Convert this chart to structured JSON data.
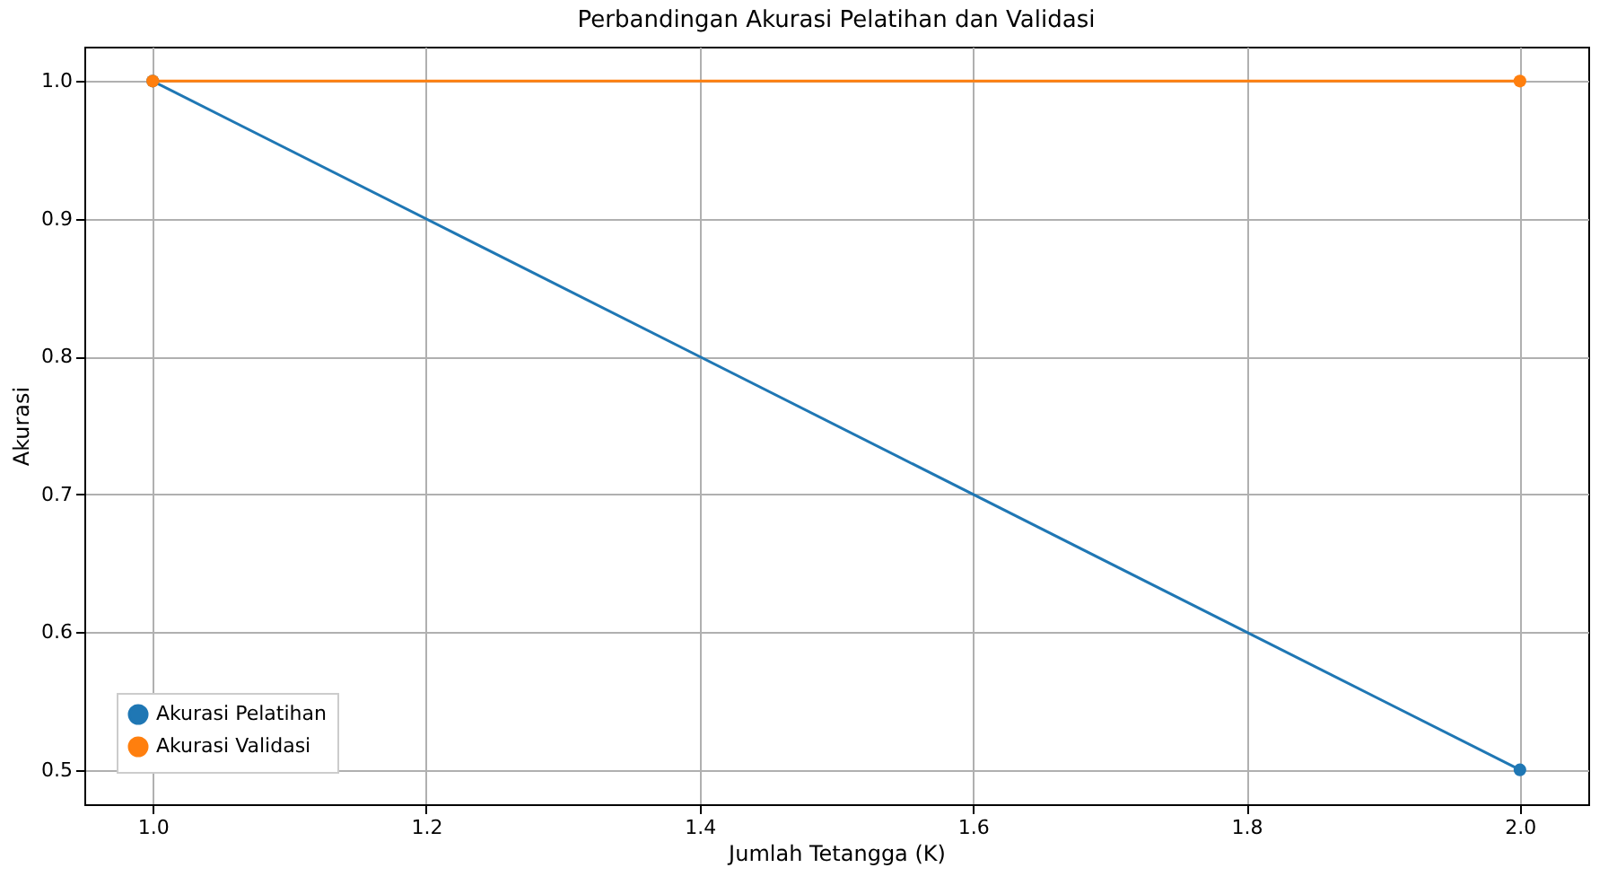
{
  "chart_data": {
    "type": "line",
    "title": "Perbandingan Akurasi Pelatihan dan Validasi",
    "xlabel": "Jumlah Tetangga (K)",
    "ylabel": "Akurasi",
    "x": [
      1,
      2
    ],
    "series": [
      {
        "name": "Akurasi Pelatihan",
        "color": "#1f77b4",
        "values": [
          1.0,
          0.5
        ]
      },
      {
        "name": "Akurasi Validasi",
        "color": "#ff7f0e",
        "values": [
          1.0,
          1.0
        ]
      }
    ],
    "xlim": [
      0.95,
      2.05
    ],
    "xticks": [
      {
        "value": 1,
        "label": "1.0"
      },
      1.2,
      1.4,
      1.6,
      1.8,
      {
        "value": 2,
        "label": "2.0"
      }
    ],
    "ylim": [
      0.475,
      1.025
    ],
    "yticks": [
      0.5,
      0.6,
      0.7,
      0.8,
      0.9,
      {
        "value": 1,
        "label": "1.0"
      }
    ],
    "grid": true,
    "legend": "bottom left",
    "marker": "circle"
  }
}
